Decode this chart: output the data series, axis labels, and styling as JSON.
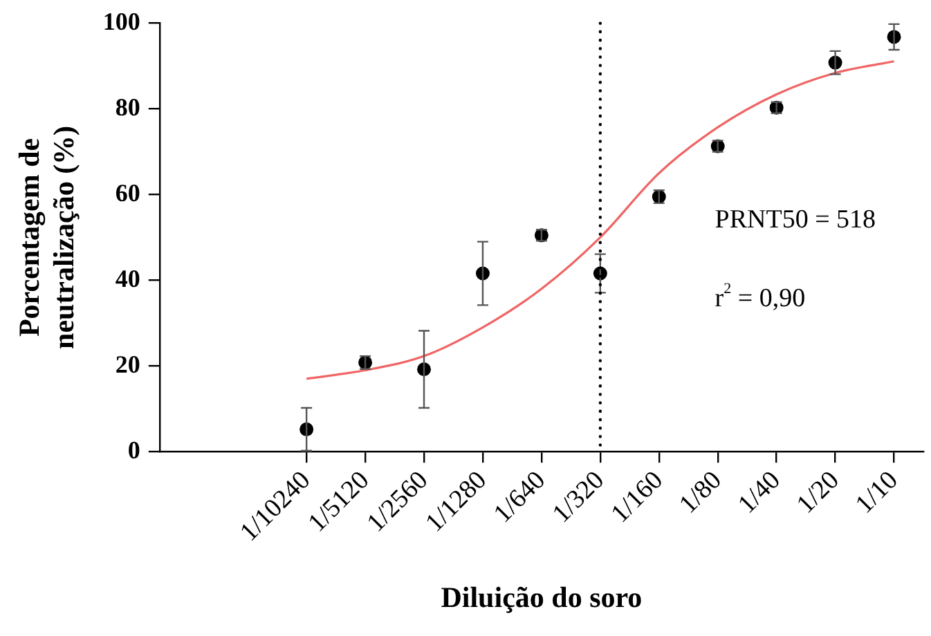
{
  "chart_data": {
    "type": "scatter",
    "xlabel": "Diluição do soro",
    "ylabel": "Porcentagem de neutralização (%)",
    "categories": [
      null,
      null,
      "1/10240",
      "1/5120",
      "1/2560",
      "1/1280",
      "1/640",
      "1/320",
      "1/160",
      "1/80",
      "1/40",
      "1/20",
      "1/10"
    ],
    "ylim": [
      0,
      100
    ],
    "yticks": [
      0,
      20,
      40,
      60,
      80,
      100
    ],
    "ref_lines": [
      {
        "axis": "x",
        "value": "1/320",
        "color": "#000000",
        "line_style": "dotted"
      }
    ],
    "annotations": [
      "PRNT50 = 518",
      "r$^{2}$ = 0,90"
    ],
    "series": [
      {
        "color": "#000000",
        "marker": "circle",
        "values": [
          null,
          null,
          5.2,
          20.8,
          19.2,
          41.6,
          50.5,
          41.6,
          59.5,
          71.3,
          80.3,
          90.8,
          96.8
        ],
        "errors": [
          null,
          null,
          5,
          1.5,
          9,
          7.4,
          1.3,
          4.5,
          1.5,
          1.3,
          1.3,
          2.7,
          3
        ]
      },
      {
        "type": "line",
        "color": "#f06464",
        "marker": "none",
        "line_style": "solid",
        "values": [
          null,
          null,
          17,
          19,
          22.3,
          29,
          38,
          50,
          65,
          75.7,
          83.4,
          88.4,
          91.1
        ]
      }
    ]
  }
}
